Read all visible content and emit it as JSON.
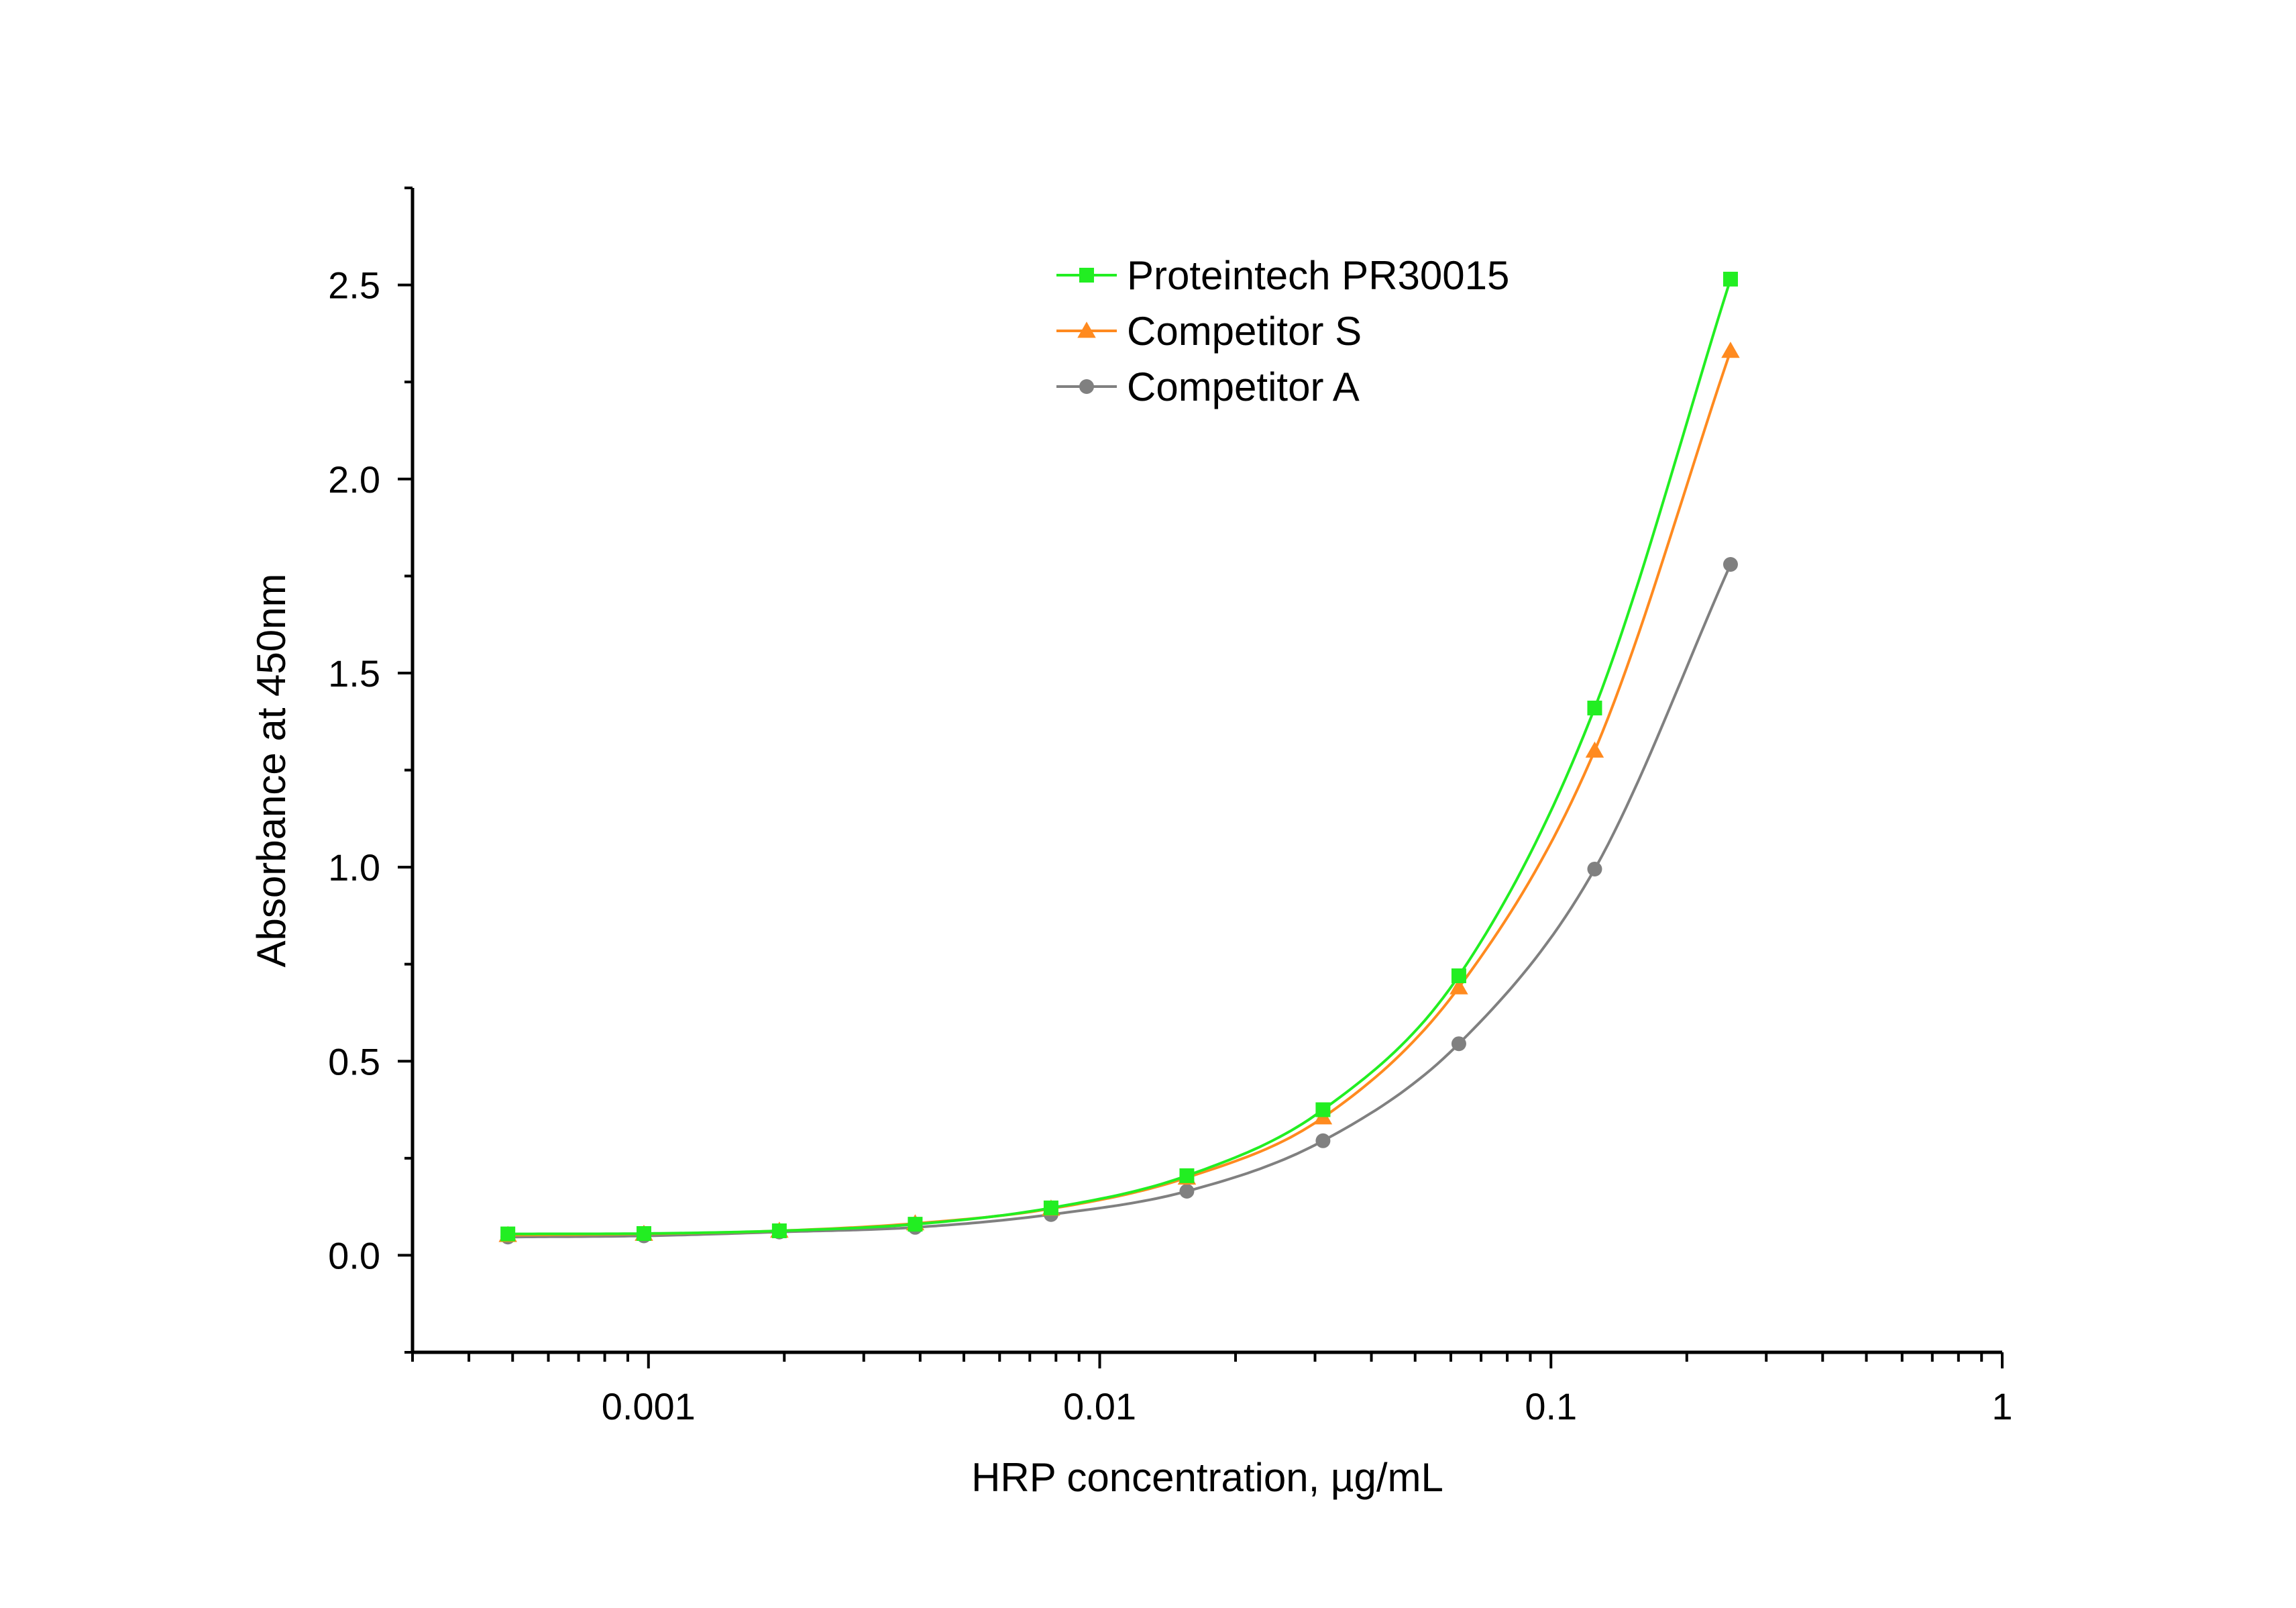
{
  "chart_data": {
    "type": "line",
    "title": "",
    "xlabel": "HRP concentration, µg/mL",
    "ylabel": "Absorbance at 450nm",
    "xscale": "log",
    "xlim": [
      0.0003,
      1
    ],
    "ylim": [
      -0.25,
      2.75
    ],
    "xticks": [
      {
        "value": 0.001,
        "label": "0.001"
      },
      {
        "value": 0.01,
        "label": "0.01"
      },
      {
        "value": 0.1,
        "label": "0.1"
      },
      {
        "value": 1,
        "label": "1"
      }
    ],
    "yticks": [
      {
        "value": 0.0,
        "label": "0.0"
      },
      {
        "value": 0.5,
        "label": "0.5"
      },
      {
        "value": 1.0,
        "label": "1.0"
      },
      {
        "value": 1.5,
        "label": "1.5"
      },
      {
        "value": 2.0,
        "label": "2.0"
      },
      {
        "value": 2.5,
        "label": "2.5"
      }
    ],
    "grid": false,
    "legend_position": "top-center",
    "x": [
      0.000488,
      0.000977,
      0.00195,
      0.0039,
      0.0078,
      0.0156,
      0.03125,
      0.0625,
      0.125,
      0.25
    ],
    "series": [
      {
        "name": "Proteintech PR30015",
        "color": "#22ee22",
        "marker": "square",
        "values": [
          0.055,
          0.056,
          0.063,
          0.08,
          0.122,
          0.205,
          0.375,
          0.72,
          1.41,
          2.515
        ]
      },
      {
        "name": "Competitor S",
        "color": "#ff8a1f",
        "marker": "triangle",
        "values": [
          0.052,
          0.055,
          0.063,
          0.082,
          0.12,
          0.2,
          0.355,
          0.69,
          1.3,
          2.33
        ]
      },
      {
        "name": "Competitor A",
        "color": "#808080",
        "marker": "circle",
        "values": [
          0.047,
          0.05,
          0.06,
          0.072,
          0.105,
          0.165,
          0.295,
          0.545,
          0.995,
          1.78
        ]
      }
    ]
  }
}
